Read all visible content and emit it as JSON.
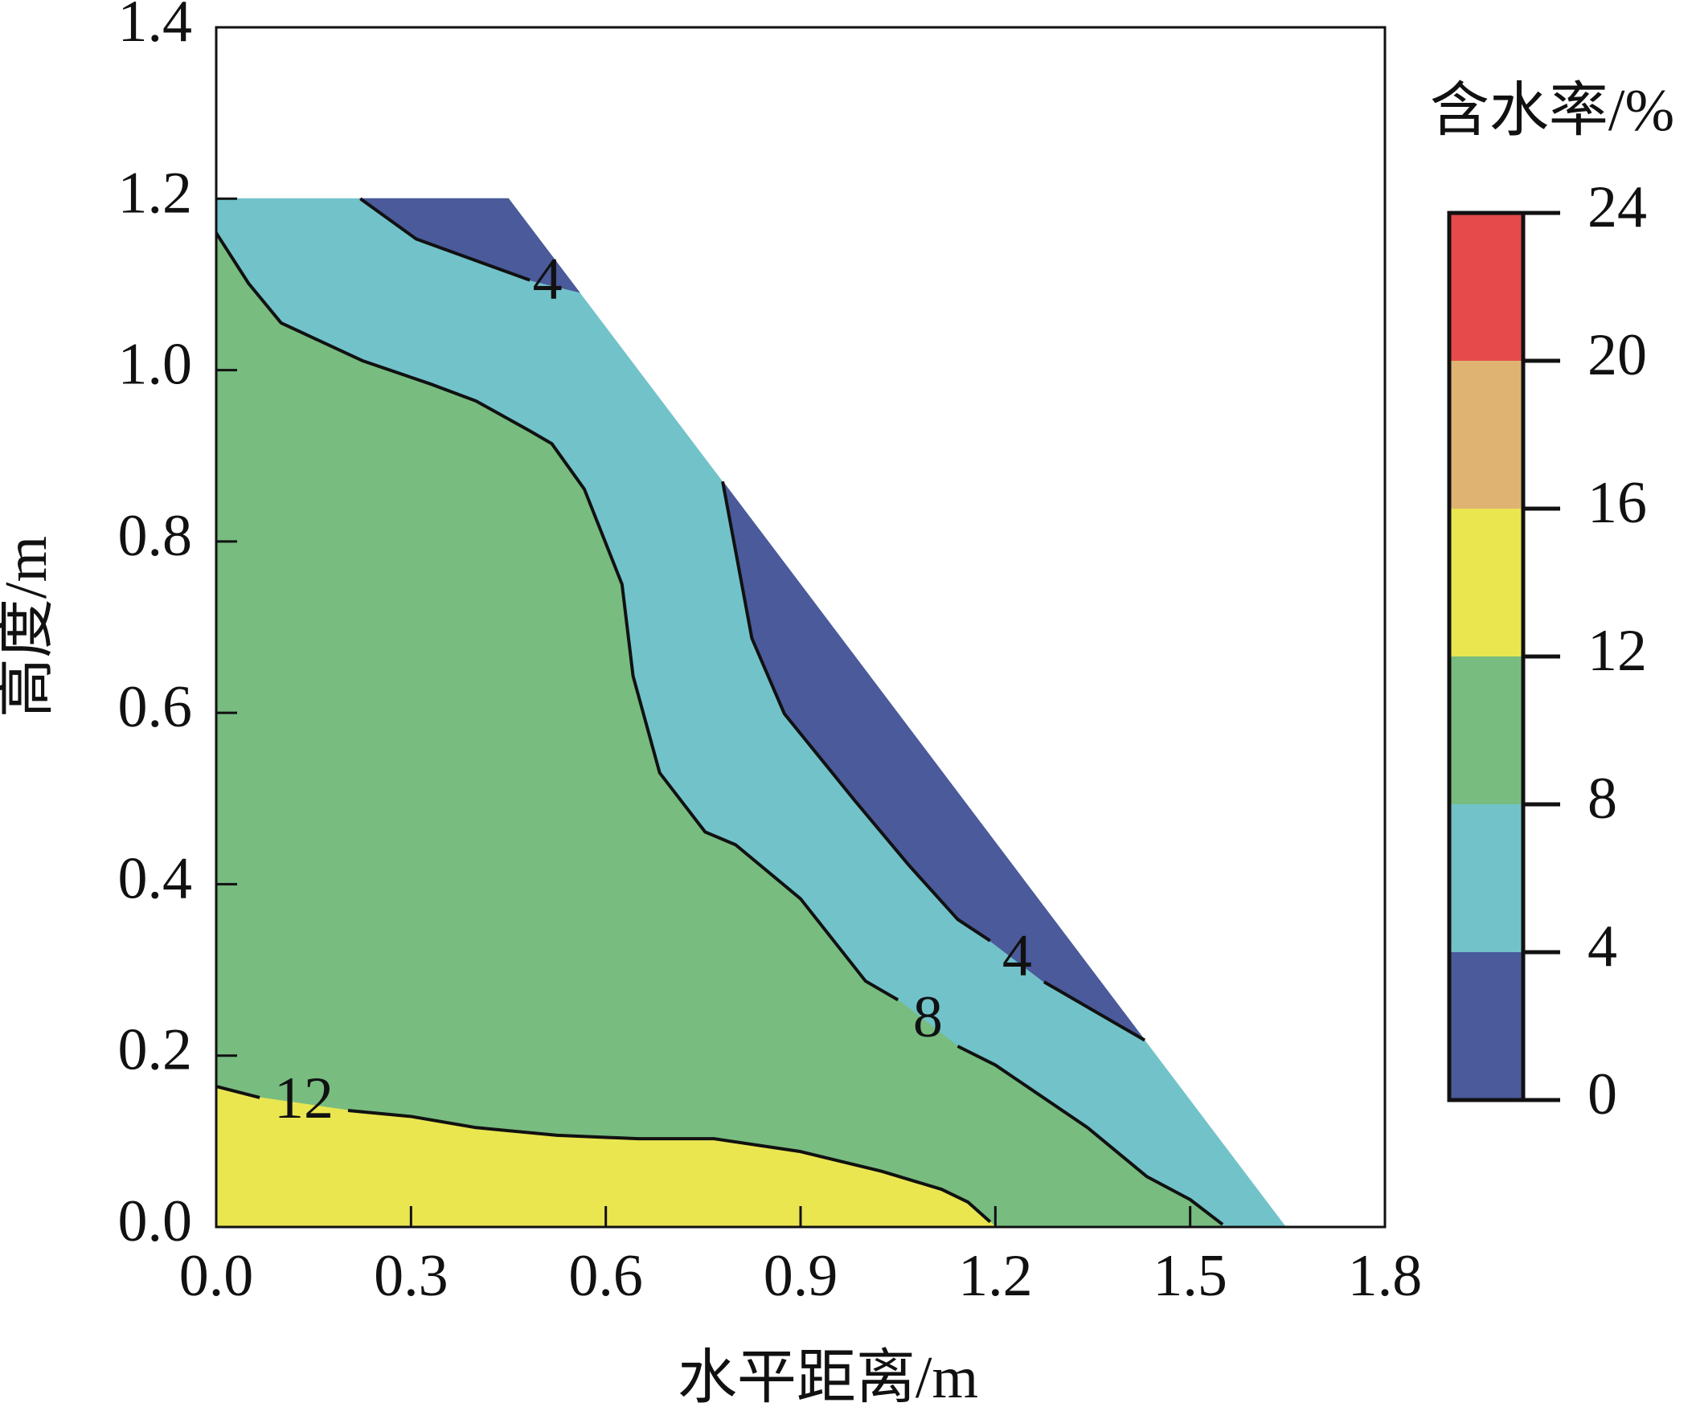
{
  "chart_data": {
    "type": "contour",
    "xlabel": "水平距离/m",
    "ylabel": "高度/m",
    "xlim": [
      0,
      1.8
    ],
    "xticks": [
      {
        "value": 0,
        "label": "0.0"
      },
      0.3,
      0.6,
      0.9,
      1.2,
      1.5,
      1.8
    ],
    "ylim": [
      0,
      1.4
    ],
    "yticks": [
      {
        "value": 0,
        "label": "0.0"
      },
      0.2,
      0.4,
      0.6,
      0.8,
      {
        "value": 1,
        "label": "1.0"
      },
      1.2,
      1.4
    ],
    "colorbar": {
      "title": "含水率/%",
      "levels": [
        0,
        4,
        8,
        12,
        16,
        20,
        24
      ],
      "colors": [
        "#4a5a9a",
        "#72c2ca",
        "#78bc80",
        "#eae650",
        "#dfb472",
        "#e64a4a"
      ]
    },
    "regions": [
      {
        "color": "#72c2ca",
        "x": [
          0,
          0,
          0.45,
          1.647
        ],
        "y": [
          0,
          1.2,
          1.2,
          0
        ]
      },
      {
        "color": "#4a5a9a",
        "x": [
          0.222,
          0.308,
          0.483,
          0.559,
          0.45
        ],
        "y": [
          1.2,
          1.153,
          1.105,
          1.091,
          1.2
        ]
      },
      {
        "color": "#4a5a9a",
        "x": [
          0.78,
          0.825,
          0.875,
          0.983,
          1.067,
          1.142,
          1.192,
          1.275,
          1.43
        ],
        "y": [
          0.87,
          0.687,
          0.599,
          0.498,
          0.422,
          0.359,
          0.334,
          0.286,
          0.218
        ]
      },
      {
        "color": "#78bc80",
        "x": [
          0,
          0.05,
          0.1,
          0.225,
          0.333,
          0.4,
          0.483,
          0.517,
          0.567,
          0.625,
          0.642,
          0.683,
          0.753,
          0.8,
          0.9,
          1.0,
          1.05,
          1.142,
          1.2,
          1.342,
          1.433,
          1.5,
          1.55,
          1.55,
          0
        ],
        "y": [
          1.16,
          1.101,
          1.055,
          1.011,
          0.983,
          0.964,
          0.929,
          0.914,
          0.861,
          0.75,
          0.643,
          0.53,
          0.461,
          0.446,
          0.383,
          0.287,
          0.265,
          0.211,
          0.189,
          0.116,
          0.059,
          0.032,
          0.003,
          0,
          0
        ]
      },
      {
        "color": "#eae650",
        "x": [
          0,
          0.067,
          0.203,
          0.3,
          0.4,
          0.525,
          0.65,
          0.767,
          0.9,
          1.025,
          1.117,
          1.158,
          1.192,
          1.2,
          0
        ],
        "y": [
          0.164,
          0.151,
          0.136,
          0.129,
          0.116,
          0.107,
          0.103,
          0.103,
          0.088,
          0.065,
          0.044,
          0.029,
          0.006,
          0,
          0
        ]
      }
    ],
    "contours": [
      {
        "level": 4,
        "x": [
          0.222,
          0.308,
          0.483
        ],
        "y": [
          1.2,
          1.153,
          1.105
        ]
      },
      {
        "level": 4,
        "x": [
          0.78,
          0.825,
          0.875,
          0.983,
          1.067,
          1.142,
          1.192,
          null,
          1.275,
          1.43
        ],
        "y": [
          0.87,
          0.687,
          0.599,
          0.498,
          0.422,
          0.359,
          0.334,
          null,
          0.286,
          0.218
        ]
      },
      {
        "level": 8,
        "x": [
          0,
          0.05,
          0.1,
          0.225,
          0.333,
          0.4,
          0.483,
          0.517,
          0.567,
          0.625,
          0.642,
          0.683,
          0.753,
          0.8,
          0.9,
          1.0,
          1.05,
          null,
          1.142,
          1.2,
          1.342,
          1.433,
          1.5,
          1.55
        ],
        "y": [
          1.16,
          1.101,
          1.055,
          1.011,
          0.983,
          0.964,
          0.929,
          0.914,
          0.861,
          0.75,
          0.643,
          0.53,
          0.461,
          0.446,
          0.383,
          0.287,
          0.265,
          null,
          0.211,
          0.189,
          0.116,
          0.059,
          0.032,
          0.003
        ]
      },
      {
        "level": 12,
        "x": [
          0,
          0.067,
          null,
          0.203,
          0.3,
          0.4,
          0.525,
          0.65,
          0.767,
          0.9,
          1.025,
          1.117,
          1.158,
          1.192
        ],
        "y": [
          0.164,
          0.151,
          null,
          0.136,
          0.129,
          0.116,
          0.107,
          0.103,
          0.103,
          0.088,
          0.065,
          0.044,
          0.029,
          0.006
        ]
      }
    ]
  }
}
